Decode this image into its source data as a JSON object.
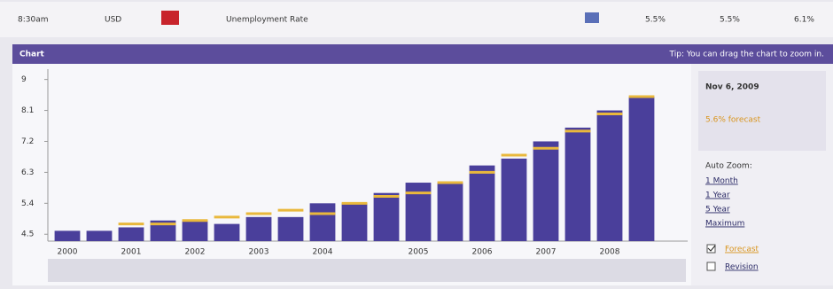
{
  "event_row": {
    "time": "8:30am",
    "currency": "USD",
    "event": "Unemployment Rate",
    "actual": "5.5%",
    "forecast": "5.5%",
    "previous": "6.1%"
  },
  "header": {
    "title": "Chart",
    "tip": "Tip: You can drag the chart to zoom in."
  },
  "chart_data": {
    "type": "bar",
    "categories": [
      "2000",
      null,
      "2001",
      null,
      "2002",
      null,
      "2003",
      null,
      "2004",
      null,
      null,
      "2005",
      null,
      "2006",
      null,
      "2007",
      null,
      "2008",
      null
    ],
    "values": [
      4.6,
      4.6,
      4.7,
      4.9,
      4.9,
      4.8,
      5.0,
      5.0,
      5.4,
      5.4,
      5.7,
      6.0,
      6.0,
      6.5,
      6.7,
      7.2,
      7.6,
      8.1,
      8.5
    ],
    "color": "#4a3f9b",
    "forecast_values": [
      null,
      null,
      4.8,
      4.8,
      4.9,
      5.0,
      5.1,
      5.2,
      5.1,
      5.4,
      5.6,
      5.7,
      6.0,
      6.3,
      6.8,
      7.0,
      7.5,
      8.0,
      8.5
    ],
    "forecast_color": "#e9b83c",
    "ylim": [
      4.3,
      9.3
    ],
    "yticks": [
      4.5,
      5.4,
      6.3,
      7.2,
      8.1,
      9.0
    ],
    "grid": false
  },
  "side_panel": {
    "date": "Nov 6, 2009",
    "forecast": "5.6% forecast",
    "zoom_label": "Auto Zoom:",
    "zoom_options": [
      "1 Month",
      "1 Year",
      "5 Year",
      "Maximum"
    ],
    "forecast_toggle": "Forecast",
    "revision_toggle": "Revision"
  }
}
